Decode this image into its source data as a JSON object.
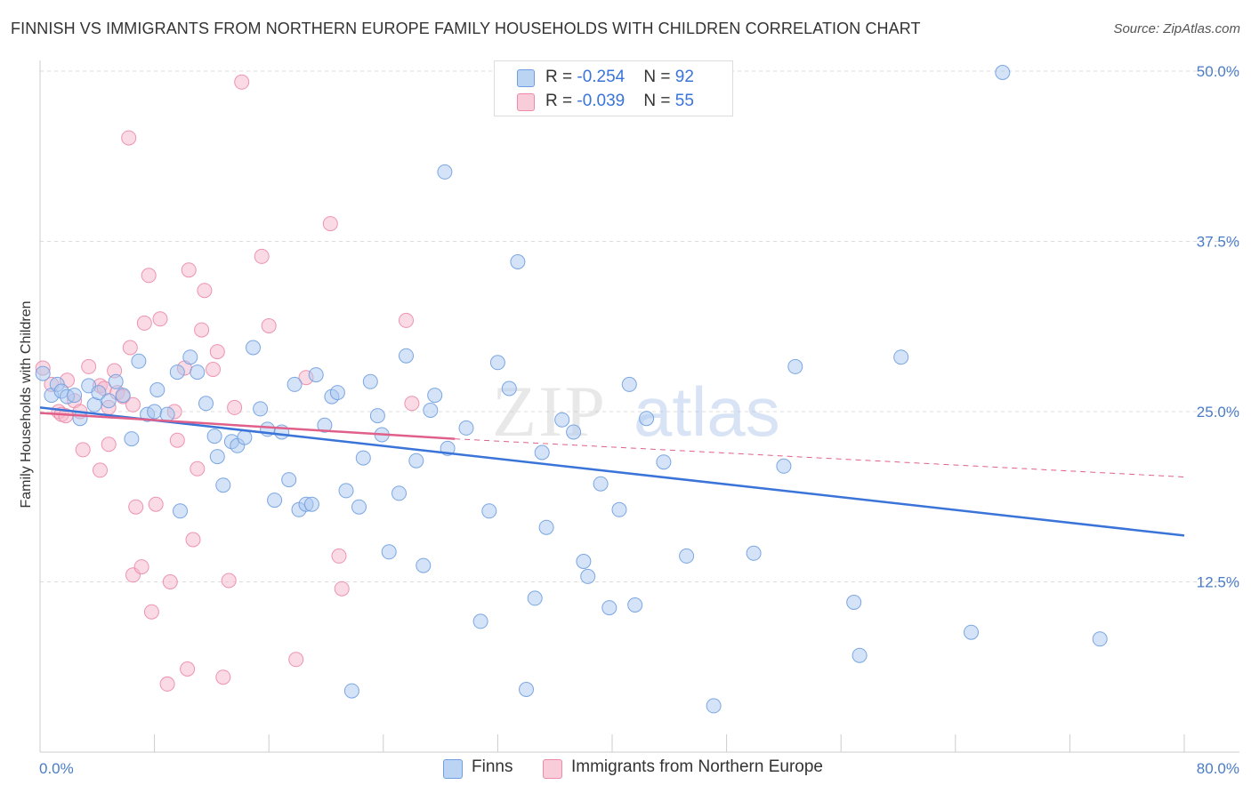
{
  "header": {
    "title": "FINNISH VS IMMIGRANTS FROM NORTHERN EUROPE FAMILY HOUSEHOLDS WITH CHILDREN CORRELATION CHART",
    "source": "Source: ZipAtlas.com"
  },
  "watermark": {
    "part1": "ZIP",
    "part2": "atlas"
  },
  "legend": {
    "finns": {
      "r_label": "R = ",
      "r_value": "-0.254",
      "n_label": "N = ",
      "n_value": "92",
      "color": "#a9c8f0"
    },
    "immigrants": {
      "r_label": "R = ",
      "r_value": "-0.039",
      "n_label": "N = ",
      "n_value": "55",
      "color": "#f6b8cb"
    }
  },
  "bottom_legend": {
    "finns": "Finns",
    "immigrants": "Immigrants from Northern Europe"
  },
  "chart_data": {
    "type": "scatter",
    "title": "FINNISH VS IMMIGRANTS FROM NORTHERN EUROPE FAMILY HOUSEHOLDS WITH CHILDREN CORRELATION CHART",
    "xlabel": "",
    "ylabel": "Family Households with Children",
    "xlim": [
      0,
      80
    ],
    "ylim": [
      0,
      50
    ],
    "x_tick_labels": [
      "0.0%",
      "80.0%"
    ],
    "y_ticks": [
      12.5,
      25.0,
      37.5,
      50.0
    ],
    "y_tick_labels": [
      "12.5%",
      "25.0%",
      "37.5%",
      "50.0%"
    ],
    "grid": "horizontal dashed",
    "colors": {
      "finns_fill": "#a9c8f0",
      "finns_stroke": "#6f9ee0",
      "finns_line": "#3a74d8",
      "imm_fill": "#f6b8cb",
      "imm_stroke": "#ec8aa8",
      "imm_line": "#e0608a"
    },
    "series": [
      {
        "name": "Finns",
        "trend": {
          "x": [
            0,
            80
          ],
          "y": [
            25.3,
            15.9
          ]
        },
        "points": [
          [
            0.2,
            27.8
          ],
          [
            0.8,
            26.2
          ],
          [
            1.2,
            27.0
          ],
          [
            1.5,
            26.5
          ],
          [
            1.9,
            26.1
          ],
          [
            2.4,
            26.2
          ],
          [
            2.8,
            24.5
          ],
          [
            3.4,
            26.9
          ],
          [
            3.8,
            25.5
          ],
          [
            4.1,
            26.4
          ],
          [
            4.8,
            25.8
          ],
          [
            5.3,
            27.2
          ],
          [
            5.8,
            26.2
          ],
          [
            6.4,
            23.0
          ],
          [
            6.9,
            28.7
          ],
          [
            7.5,
            24.8
          ],
          [
            8.0,
            25.0
          ],
          [
            8.2,
            26.6
          ],
          [
            8.9,
            24.8
          ],
          [
            9.6,
            27.9
          ],
          [
            9.8,
            17.7
          ],
          [
            10.5,
            29.0
          ],
          [
            11.0,
            27.9
          ],
          [
            11.6,
            25.6
          ],
          [
            12.2,
            23.2
          ],
          [
            12.4,
            21.7
          ],
          [
            12.8,
            19.6
          ],
          [
            13.4,
            22.8
          ],
          [
            13.8,
            22.5
          ],
          [
            14.3,
            23.1
          ],
          [
            14.9,
            29.7
          ],
          [
            15.4,
            25.2
          ],
          [
            15.9,
            23.7
          ],
          [
            16.4,
            18.5
          ],
          [
            16.9,
            23.5
          ],
          [
            17.4,
            20.0
          ],
          [
            17.8,
            27.0
          ],
          [
            18.1,
            17.8
          ],
          [
            18.6,
            18.2
          ],
          [
            19.0,
            18.2
          ],
          [
            19.3,
            27.7
          ],
          [
            19.9,
            24.0
          ],
          [
            20.4,
            26.1
          ],
          [
            20.8,
            26.4
          ],
          [
            21.4,
            19.2
          ],
          [
            21.8,
            4.5
          ],
          [
            22.3,
            18.0
          ],
          [
            22.6,
            21.6
          ],
          [
            23.1,
            27.2
          ],
          [
            23.6,
            24.7
          ],
          [
            23.9,
            23.3
          ],
          [
            24.4,
            14.7
          ],
          [
            25.1,
            19.0
          ],
          [
            25.6,
            29.1
          ],
          [
            26.3,
            21.4
          ],
          [
            26.8,
            13.7
          ],
          [
            27.3,
            25.1
          ],
          [
            27.6,
            26.2
          ],
          [
            28.3,
            42.6
          ],
          [
            28.5,
            22.3
          ],
          [
            29.8,
            23.8
          ],
          [
            30.8,
            9.6
          ],
          [
            31.4,
            17.7
          ],
          [
            32.0,
            28.6
          ],
          [
            32.8,
            26.7
          ],
          [
            33.4,
            36.0
          ],
          [
            34.0,
            4.6
          ],
          [
            34.6,
            11.3
          ],
          [
            35.1,
            22.0
          ],
          [
            35.4,
            16.5
          ],
          [
            36.5,
            24.4
          ],
          [
            37.3,
            23.5
          ],
          [
            38.0,
            14.0
          ],
          [
            38.3,
            12.9
          ],
          [
            39.2,
            19.7
          ],
          [
            39.8,
            10.6
          ],
          [
            40.5,
            17.8
          ],
          [
            41.2,
            27.0
          ],
          [
            41.6,
            10.8
          ],
          [
            42.4,
            24.5
          ],
          [
            43.6,
            21.3
          ],
          [
            45.2,
            14.4
          ],
          [
            47.1,
            3.4
          ],
          [
            49.9,
            14.6
          ],
          [
            52.0,
            21.0
          ],
          [
            52.8,
            28.3
          ],
          [
            56.9,
            11.0
          ],
          [
            57.3,
            7.1
          ],
          [
            60.2,
            29.0
          ],
          [
            65.1,
            8.8
          ],
          [
            67.3,
            49.9
          ],
          [
            74.1,
            8.3
          ]
        ]
      },
      {
        "name": "Immigrants from Northern Europe",
        "trend": {
          "x": [
            0,
            29
          ],
          "y": [
            24.9,
            23.0
          ]
        },
        "trend_dashed": {
          "x": [
            29,
            80
          ],
          "y": [
            23.0,
            20.2
          ]
        },
        "points": [
          [
            0.2,
            28.2
          ],
          [
            0.8,
            27.0
          ],
          [
            1.3,
            25.0
          ],
          [
            1.5,
            24.8
          ],
          [
            1.8,
            24.7
          ],
          [
            1.9,
            27.3
          ],
          [
            2.4,
            25.8
          ],
          [
            2.8,
            25.0
          ],
          [
            3.0,
            22.2
          ],
          [
            3.4,
            28.3
          ],
          [
            4.2,
            26.9
          ],
          [
            4.2,
            20.7
          ],
          [
            4.5,
            26.7
          ],
          [
            4.8,
            25.3
          ],
          [
            4.8,
            22.6
          ],
          [
            5.2,
            28.0
          ],
          [
            5.4,
            26.4
          ],
          [
            5.8,
            26.1
          ],
          [
            6.2,
            45.1
          ],
          [
            6.3,
            29.7
          ],
          [
            6.5,
            25.5
          ],
          [
            6.5,
            13.0
          ],
          [
            6.7,
            18.0
          ],
          [
            7.1,
            13.6
          ],
          [
            7.3,
            31.5
          ],
          [
            7.6,
            35.0
          ],
          [
            7.8,
            10.3
          ],
          [
            8.1,
            18.2
          ],
          [
            8.4,
            31.8
          ],
          [
            8.9,
            5.0
          ],
          [
            9.1,
            12.5
          ],
          [
            9.4,
            25.0
          ],
          [
            9.6,
            22.9
          ],
          [
            10.1,
            28.2
          ],
          [
            10.3,
            6.1
          ],
          [
            10.4,
            35.4
          ],
          [
            10.7,
            15.6
          ],
          [
            11.0,
            20.8
          ],
          [
            11.3,
            31.0
          ],
          [
            11.5,
            33.9
          ],
          [
            12.1,
            28.1
          ],
          [
            12.4,
            29.4
          ],
          [
            12.8,
            5.5
          ],
          [
            13.2,
            12.6
          ],
          [
            13.6,
            25.3
          ],
          [
            14.1,
            49.2
          ],
          [
            15.5,
            36.4
          ],
          [
            16.0,
            31.3
          ],
          [
            17.9,
            6.8
          ],
          [
            18.6,
            27.5
          ],
          [
            20.3,
            38.8
          ],
          [
            20.9,
            14.4
          ],
          [
            21.1,
            12.0
          ],
          [
            25.6,
            31.7
          ],
          [
            26.0,
            25.6
          ]
        ]
      }
    ]
  }
}
